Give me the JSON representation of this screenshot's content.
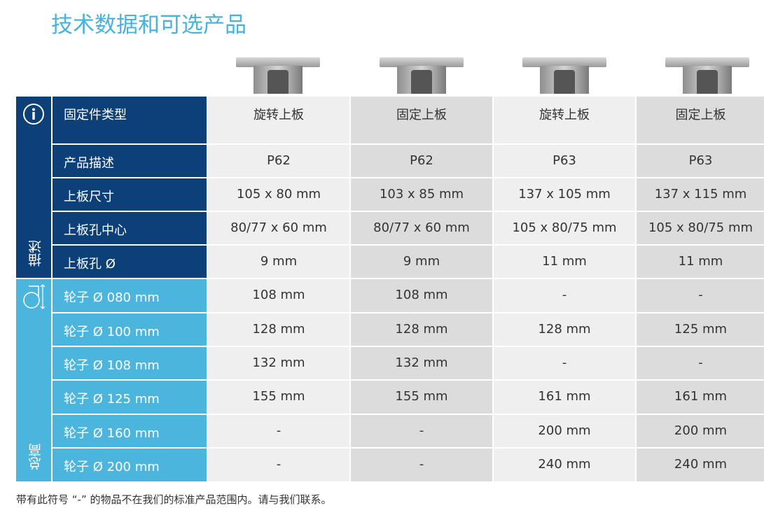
{
  "title": "技术数据和可选产品",
  "sections": {
    "description": "描述",
    "total_height": "总高"
  },
  "icons": {
    "info": "info-icon",
    "wheel": "wheel-height-icon"
  },
  "colors": {
    "title": "#47b2de",
    "dark": "#0d3f78",
    "light": "#4cb5de"
  },
  "rows": [
    {
      "label": "固定件类型",
      "values": [
        "旋转上板",
        "固定上板",
        "旋转上板",
        "固定上板"
      ]
    },
    {
      "label": "产品描述",
      "values": [
        "P62",
        "P62",
        "P63",
        "P63"
      ]
    },
    {
      "label": "上板尺寸",
      "values": [
        "105 x 80 mm",
        "103 x 85 mm",
        "137 x 105 mm",
        "137 x 115 mm"
      ]
    },
    {
      "label": "上板孔中心",
      "values": [
        "80/77 x 60 mm",
        "80/77 x 60 mm",
        "105 x 80/75 mm",
        "105 x 80/75 mm"
      ]
    },
    {
      "label": "上板孔 Ø",
      "values": [
        "9 mm",
        "9 mm",
        "11 mm",
        "11 mm"
      ]
    },
    {
      "label": "轮子 Ø 080 mm",
      "values": [
        "108 mm",
        "108 mm",
        "-",
        "-"
      ]
    },
    {
      "label": "轮子 Ø 100 mm",
      "values": [
        "128 mm",
        "128 mm",
        "128 mm",
        "125 mm"
      ]
    },
    {
      "label": "轮子 Ø 108 mm",
      "values": [
        "132 mm",
        "132 mm",
        "-",
        "-"
      ]
    },
    {
      "label": "轮子 Ø 125 mm",
      "values": [
        "155 mm",
        "155 mm",
        "161 mm",
        "161 mm"
      ]
    },
    {
      "label": "轮子 Ø 160 mm",
      "values": [
        "-",
        "-",
        "200 mm",
        "200 mm"
      ]
    },
    {
      "label": "轮子 Ø 200 mm",
      "values": [
        "-",
        "-",
        "240 mm",
        "240 mm"
      ]
    }
  ],
  "note": "带有此符号 “-” 的物品不在我们的标准产品范围内。请与我们联系。"
}
